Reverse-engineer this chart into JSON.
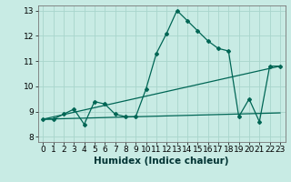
{
  "title": "",
  "xlabel": "Humidex (Indice chaleur)",
  "xlim": [
    -0.5,
    23.5
  ],
  "ylim": [
    7.8,
    13.2
  ],
  "yticks": [
    8,
    9,
    10,
    11,
    12,
    13
  ],
  "xticks": [
    0,
    1,
    2,
    3,
    4,
    5,
    6,
    7,
    8,
    9,
    10,
    11,
    12,
    13,
    14,
    15,
    16,
    17,
    18,
    19,
    20,
    21,
    22,
    23
  ],
  "bg_color": "#c8ebe4",
  "grid_color": "#a8d5cc",
  "line_color": "#006655",
  "series1_x": [
    0,
    1,
    2,
    3,
    4,
    5,
    6,
    7,
    8,
    9,
    10,
    11,
    12,
    13,
    14,
    15,
    16,
    17,
    18,
    19,
    20,
    21,
    22,
    23
  ],
  "series1_y": [
    8.7,
    8.7,
    8.9,
    9.1,
    8.5,
    9.4,
    9.3,
    8.9,
    8.8,
    8.8,
    9.9,
    11.3,
    12.1,
    13.0,
    12.6,
    12.2,
    11.8,
    11.5,
    11.4,
    8.8,
    9.5,
    8.6,
    10.8,
    10.8
  ],
  "series2_x": [
    0,
    23
  ],
  "series2_y": [
    8.7,
    10.8
  ],
  "series3_x": [
    0,
    23
  ],
  "series3_y": [
    8.7,
    8.95
  ],
  "tick_fontsize": 6.5,
  "label_fontsize": 7.5
}
